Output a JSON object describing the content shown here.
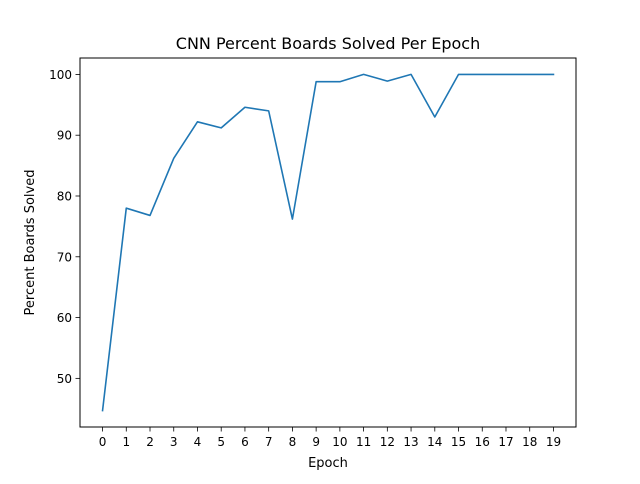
{
  "chart_data": {
    "type": "line",
    "title": "CNN Percent Boards Solved Per Epoch",
    "xlabel": "Epoch",
    "ylabel": "Percent Boards Solved",
    "x": [
      0,
      1,
      2,
      3,
      4,
      5,
      6,
      7,
      8,
      9,
      10,
      11,
      12,
      13,
      14,
      15,
      16,
      17,
      18,
      19
    ],
    "series": [
      {
        "values": [
          44.7,
          78.0,
          76.8,
          86.2,
          92.2,
          91.2,
          94.6,
          94.0,
          76.2,
          98.8,
          98.8,
          100.0,
          98.9,
          100.0,
          93.0,
          100.0,
          100.0,
          100.0,
          100.0,
          100.0
        ],
        "color": "#1f77b4"
      }
    ],
    "xticks": [
      "0",
      "1",
      "2",
      "3",
      "4",
      "5",
      "6",
      "7",
      "8",
      "9",
      "10",
      "11",
      "12",
      "13",
      "14",
      "15",
      "16",
      "17",
      "18",
      "19"
    ],
    "yticks": [
      "50",
      "60",
      "70",
      "80",
      "90",
      "100"
    ],
    "xlim": [
      -0.95,
      19.95
    ],
    "ylim": [
      42.0,
      102.7
    ],
    "grid": false,
    "legend": "none"
  }
}
